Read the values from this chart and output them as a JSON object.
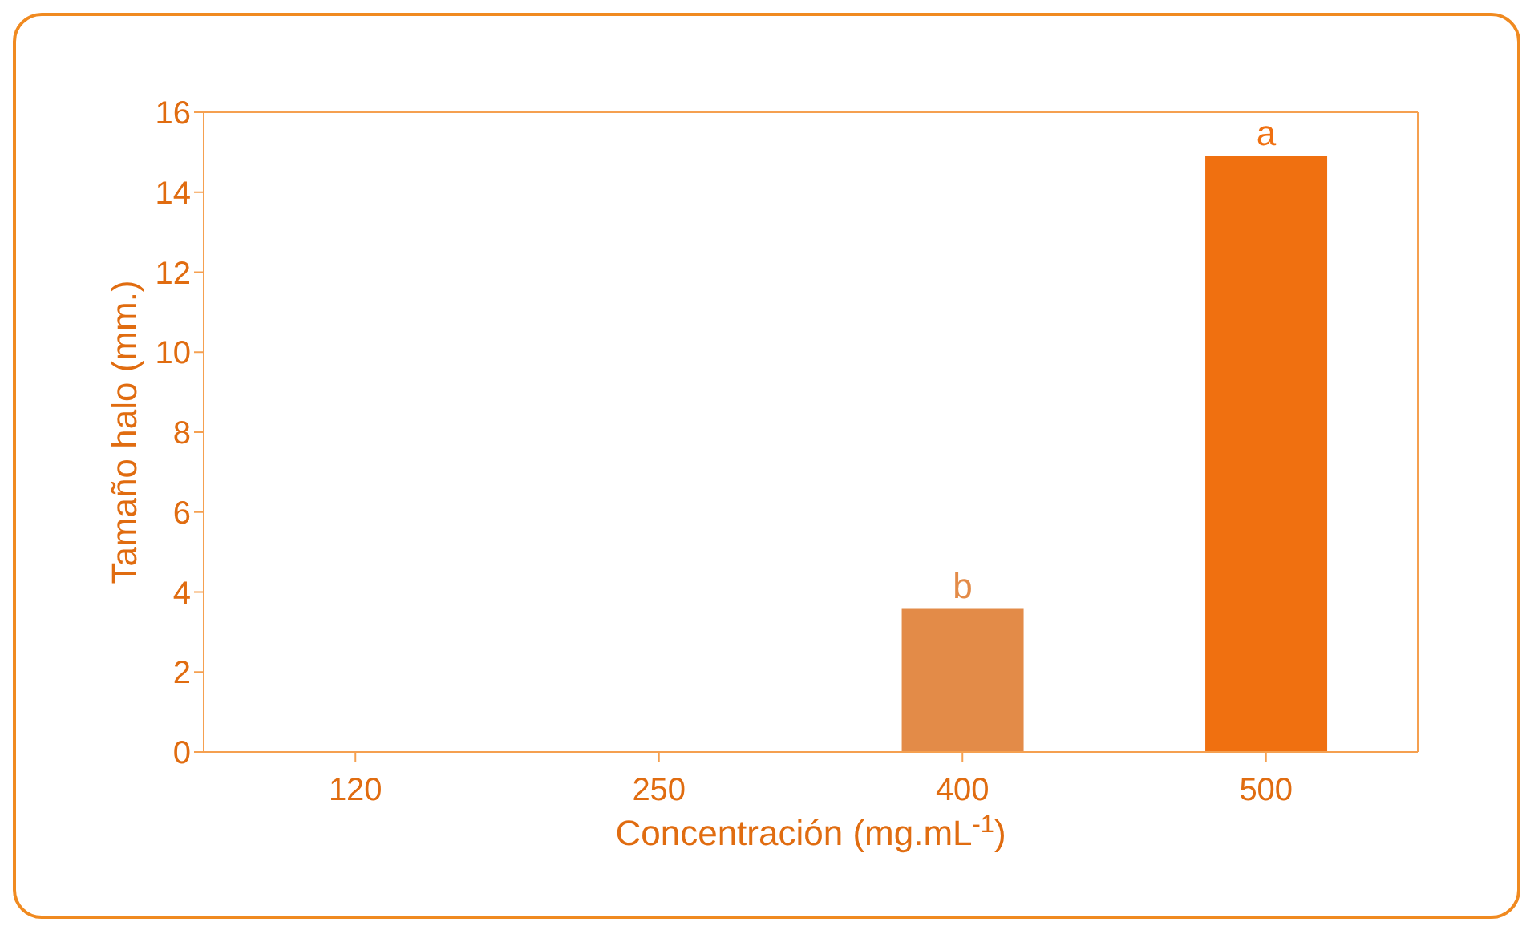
{
  "chart_data": {
    "type": "bar",
    "xlabel": "Concentración (mg.mL$^{-1}$)",
    "ylabel": "Tamaño halo (mm.)",
    "categories": [
      "120",
      "250",
      "400",
      "500"
    ],
    "values": [
      0,
      0,
      3.6,
      14.9
    ],
    "colors": [
      "#f07010",
      "#f07010",
      "#e38b48",
      "#f07010"
    ],
    "ylim": [
      0,
      16
    ],
    "yticks": [
      0,
      2,
      4,
      6,
      8,
      10,
      12,
      14,
      16
    ],
    "grid": false,
    "legend": false,
    "annotations": [
      {
        "text": "b",
        "x": "400",
        "y": 3.6
      },
      {
        "text": "a",
        "x": "500",
        "y": 14.9
      }
    ]
  }
}
